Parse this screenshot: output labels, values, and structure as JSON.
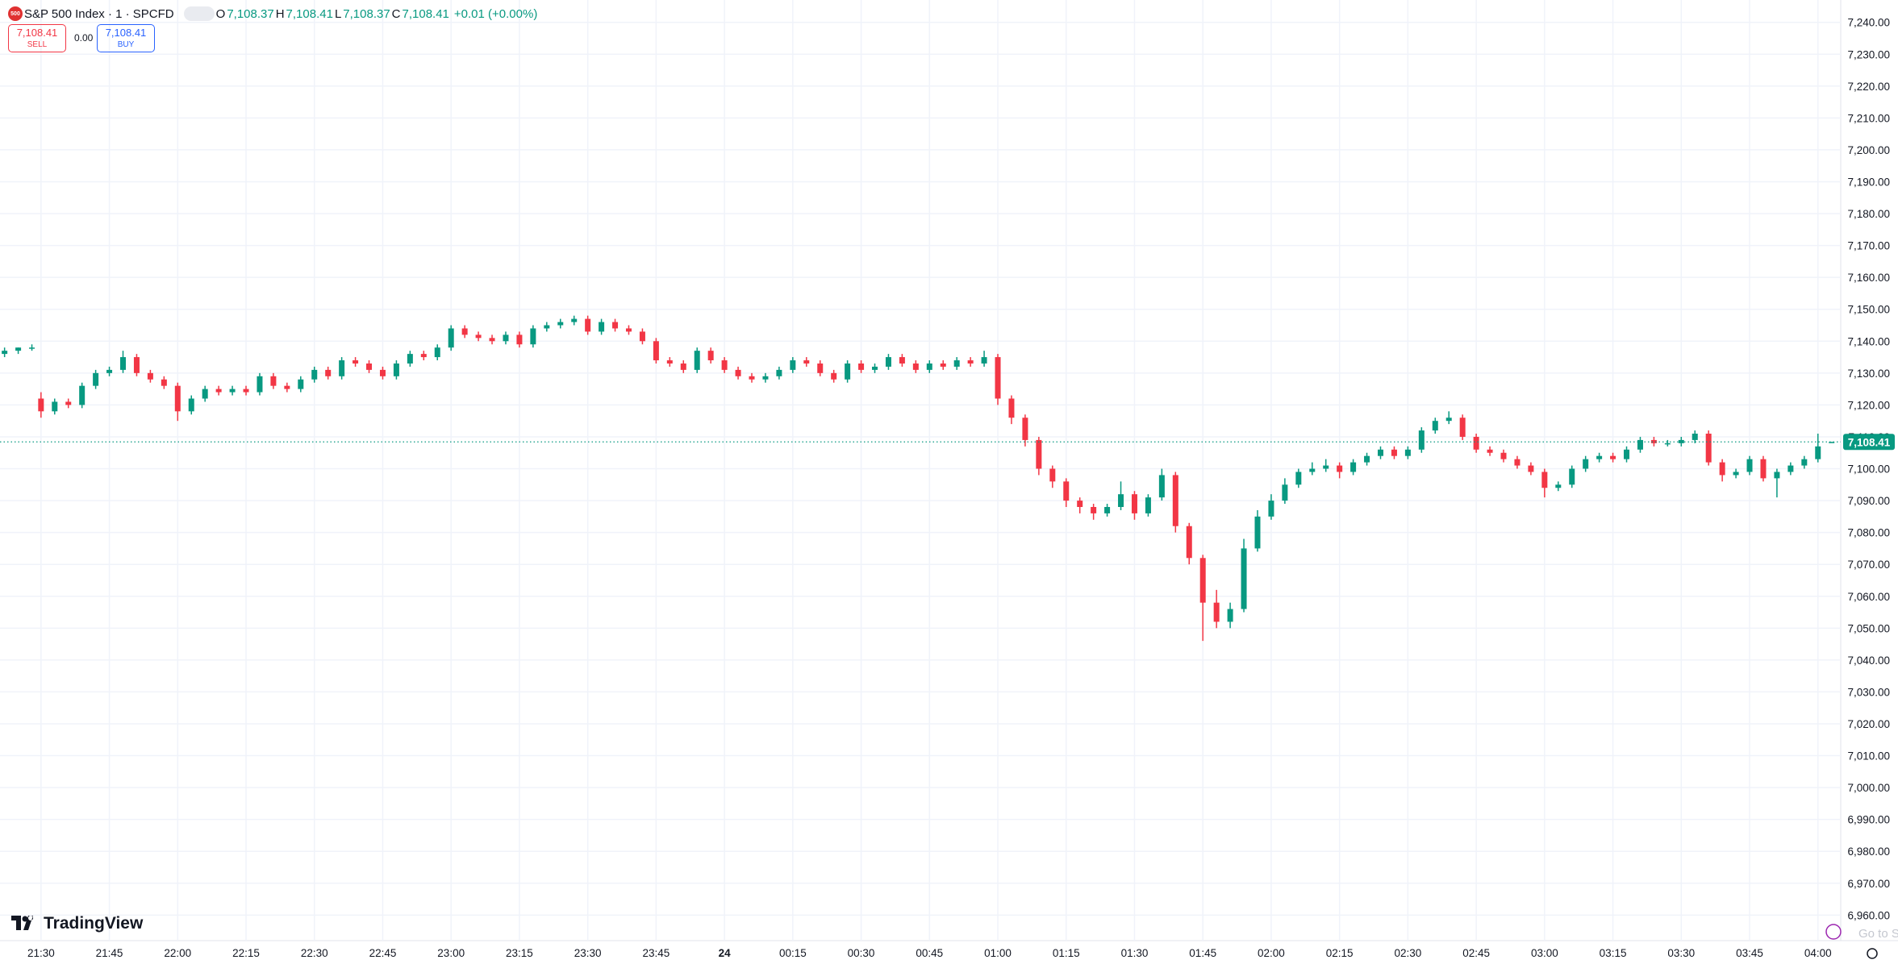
{
  "header": {
    "logo": "500",
    "symbol": "S&P 500 Index · 1 · SPCFD",
    "o_label": "O",
    "o_value": "7,108.37",
    "h_label": "H",
    "h_value": "7,108.41",
    "l_label": "L",
    "l_value": "7,108.37",
    "c_label": "C",
    "c_value": "7,108.41",
    "change": "+0.01 (+0.00%)",
    "sell_price": "7,108.41",
    "sell": "SELL",
    "spread": "0.00",
    "buy_price": "7,108.41",
    "buy": "BUY"
  },
  "footer": {
    "brand": "TradingView",
    "goto": "Go to S"
  },
  "chart_data": {
    "type": "candlestick",
    "up_color": "#089981",
    "down_color": "#f23645",
    "grid": true,
    "xlim": [
      "21:21",
      "04:05"
    ],
    "ylim": [
      6952,
      7247
    ],
    "last_price": {
      "value": 7108.41,
      "label": "7,108.41"
    },
    "xticks": [
      "21:30",
      "21:45",
      "22:00",
      "22:15",
      "22:30",
      "22:45",
      "23:00",
      "23:15",
      "23:30",
      "23:45",
      {
        "value": "00:00",
        "label": "24"
      },
      "00:15",
      "00:30",
      "00:45",
      "01:00",
      "01:15",
      "01:30",
      "01:45",
      "02:00",
      "02:15",
      "02:30",
      "02:45",
      "03:00",
      "03:15",
      "03:30",
      "03:45",
      "04:00"
    ],
    "yticks": [
      {
        "value": 6960,
        "label": "6,960.00"
      },
      {
        "value": 6970,
        "label": "6,970.00"
      },
      {
        "value": 6980,
        "label": "6,980.00"
      },
      {
        "value": 6990,
        "label": "6,990.00"
      },
      {
        "value": 7000,
        "label": "7,000.00"
      },
      {
        "value": 7010,
        "label": "7,010.00"
      },
      {
        "value": 7020,
        "label": "7,020.00"
      },
      {
        "value": 7030,
        "label": "7,030.00"
      },
      {
        "value": 7040,
        "label": "7,040.00"
      },
      {
        "value": 7050,
        "label": "7,050.00"
      },
      {
        "value": 7060,
        "label": "7,060.00"
      },
      {
        "value": 7070,
        "label": "7,070.00"
      },
      {
        "value": 7080,
        "label": "7,080.00"
      },
      {
        "value": 7090,
        "label": "7,090.00"
      },
      {
        "value": 7100,
        "label": "7,100.00"
      },
      {
        "value": 7110,
        "label": "7,110.00"
      },
      {
        "value": 7120,
        "label": "7,120.00"
      },
      {
        "value": 7130,
        "label": "7,130.00"
      },
      {
        "value": 7140,
        "label": "7,140.00"
      },
      {
        "value": 7150,
        "label": "7,150.00"
      },
      {
        "value": 7160,
        "label": "7,160.00"
      },
      {
        "value": 7170,
        "label": "7,170.00"
      },
      {
        "value": 7180,
        "label": "7,180.00"
      },
      {
        "value": 7190,
        "label": "7,190.00"
      },
      {
        "value": 7200,
        "label": "7,200.00"
      },
      {
        "value": 7210,
        "label": "7,210.00"
      },
      {
        "value": 7220,
        "label": "7,220.00"
      },
      {
        "value": 7230,
        "label": "7,230.00"
      },
      {
        "value": 7240,
        "label": "7,240.00"
      }
    ],
    "x": [
      "21:22",
      "21:25",
      "21:28",
      "21:30",
      "21:33",
      "21:36",
      "21:39",
      "21:42",
      "21:45",
      "21:48",
      "21:51",
      "21:54",
      "21:57",
      "22:00",
      "22:03",
      "22:06",
      "22:09",
      "22:12",
      "22:15",
      "22:18",
      "22:21",
      "22:24",
      "22:27",
      "22:30",
      "22:33",
      "22:36",
      "22:39",
      "22:42",
      "22:45",
      "22:48",
      "22:51",
      "22:54",
      "22:57",
      "23:00",
      "23:03",
      "23:06",
      "23:09",
      "23:12",
      "23:15",
      "23:18",
      "23:21",
      "23:24",
      "23:27",
      "23:30",
      "23:33",
      "23:36",
      "23:39",
      "23:42",
      "23:45",
      "23:48",
      "23:51",
      "23:54",
      "23:57",
      "00:00",
      "00:03",
      "00:06",
      "00:09",
      "00:12",
      "00:15",
      "00:18",
      "00:21",
      "00:24",
      "00:27",
      "00:30",
      "00:33",
      "00:36",
      "00:39",
      "00:42",
      "00:45",
      "00:48",
      "00:51",
      "00:54",
      "00:57",
      "01:00",
      "01:03",
      "01:06",
      "01:09",
      "01:12",
      "01:15",
      "01:18",
      "01:21",
      "01:24",
      "01:27",
      "01:30",
      "01:33",
      "01:36",
      "01:39",
      "01:42",
      "01:45",
      "01:48",
      "01:51",
      "01:54",
      "01:57",
      "02:00",
      "02:03",
      "02:06",
      "02:09",
      "02:12",
      "02:15",
      "02:18",
      "02:21",
      "02:24",
      "02:27",
      "02:30",
      "02:33",
      "02:36",
      "02:39",
      "02:42",
      "02:45",
      "02:48",
      "02:51",
      "02:54",
      "02:57",
      "03:00",
      "03:03",
      "03:06",
      "03:09",
      "03:12",
      "03:15",
      "03:18",
      "03:21",
      "03:24",
      "03:27",
      "03:30",
      "03:33",
      "03:36",
      "03:39",
      "03:42",
      "03:45",
      "03:48",
      "03:51",
      "03:54",
      "03:57",
      "04:00",
      "04:03"
    ],
    "candles": [
      [
        7136,
        7138,
        7135,
        7137
      ],
      [
        7137,
        7138,
        7136,
        7138
      ],
      [
        7138,
        7139,
        7137,
        7138
      ],
      [
        7122,
        7124,
        7116,
        7118
      ],
      [
        7118,
        7122,
        7117,
        7121
      ],
      [
        7121,
        7122,
        7119,
        7120
      ],
      [
        7120,
        7127,
        7119,
        7126
      ],
      [
        7126,
        7131,
        7125,
        7130
      ],
      [
        7130,
        7132,
        7129,
        7131
      ],
      [
        7131,
        7137,
        7130,
        7135
      ],
      [
        7135,
        7136,
        7129,
        7130
      ],
      [
        7130,
        7131,
        7127,
        7128
      ],
      [
        7128,
        7129,
        7125,
        7126
      ],
      [
        7126,
        7127,
        7115,
        7118
      ],
      [
        7118,
        7123,
        7117,
        7122
      ],
      [
        7122,
        7126,
        7121,
        7125
      ],
      [
        7125,
        7126,
        7123,
        7124
      ],
      [
        7124,
        7126,
        7123,
        7125
      ],
      [
        7125,
        7126,
        7123,
        7124
      ],
      [
        7124,
        7130,
        7123,
        7129
      ],
      [
        7129,
        7130,
        7125,
        7126
      ],
      [
        7126,
        7127,
        7124,
        7125
      ],
      [
        7125,
        7129,
        7124,
        7128
      ],
      [
        7128,
        7132,
        7127,
        7131
      ],
      [
        7131,
        7132,
        7128,
        7129
      ],
      [
        7129,
        7135,
        7128,
        7134
      ],
      [
        7134,
        7135,
        7132,
        7133
      ],
      [
        7133,
        7134,
        7130,
        7131
      ],
      [
        7131,
        7132,
        7128,
        7129
      ],
      [
        7129,
        7134,
        7128,
        7133
      ],
      [
        7133,
        7137,
        7132,
        7136
      ],
      [
        7136,
        7137,
        7134,
        7135
      ],
      [
        7135,
        7139,
        7134,
        7138
      ],
      [
        7138,
        7145,
        7137,
        7144
      ],
      [
        7144,
        7145,
        7141,
        7142
      ],
      [
        7142,
        7143,
        7140,
        7141
      ],
      [
        7141,
        7142,
        7139,
        7140
      ],
      [
        7140,
        7143,
        7139,
        7142
      ],
      [
        7142,
        7143,
        7138,
        7139
      ],
      [
        7139,
        7145,
        7138,
        7144
      ],
      [
        7144,
        7146,
        7143,
        7145
      ],
      [
        7145,
        7147,
        7144,
        7146
      ],
      [
        7146,
        7148,
        7145,
        7147
      ],
      [
        7147,
        7148,
        7142,
        7143
      ],
      [
        7143,
        7147,
        7142,
        7146
      ],
      [
        7146,
        7147,
        7143,
        7144
      ],
      [
        7144,
        7145,
        7142,
        7143
      ],
      [
        7143,
        7144,
        7139,
        7140
      ],
      [
        7140,
        7141,
        7133,
        7134
      ],
      [
        7134,
        7135,
        7132,
        7133
      ],
      [
        7133,
        7134,
        7130,
        7131
      ],
      [
        7131,
        7138,
        7130,
        7137
      ],
      [
        7137,
        7138,
        7133,
        7134
      ],
      [
        7134,
        7135,
        7130,
        7131
      ],
      [
        7131,
        7132,
        7128,
        7129
      ],
      [
        7129,
        7130,
        7127,
        7128
      ],
      [
        7128,
        7130,
        7127,
        7129
      ],
      [
        7129,
        7132,
        7128,
        7131
      ],
      [
        7131,
        7135,
        7130,
        7134
      ],
      [
        7134,
        7135,
        7132,
        7133
      ],
      [
        7133,
        7134,
        7129,
        7130
      ],
      [
        7130,
        7131,
        7127,
        7128
      ],
      [
        7128,
        7134,
        7127,
        7133
      ],
      [
        7133,
        7134,
        7130,
        7131
      ],
      [
        7131,
        7133,
        7130,
        7132
      ],
      [
        7132,
        7136,
        7131,
        7135
      ],
      [
        7135,
        7136,
        7132,
        7133
      ],
      [
        7133,
        7134,
        7130,
        7131
      ],
      [
        7131,
        7134,
        7130,
        7133
      ],
      [
        7133,
        7134,
        7131,
        7132
      ],
      [
        7132,
        7135,
        7131,
        7134
      ],
      [
        7134,
        7135,
        7132,
        7133
      ],
      [
        7133,
        7137,
        7132,
        7135
      ],
      [
        7135,
        7136,
        7120,
        7122
      ],
      [
        7122,
        7123,
        7114,
        7116
      ],
      [
        7116,
        7117,
        7107,
        7109
      ],
      [
        7109,
        7110,
        7098,
        7100
      ],
      [
        7100,
        7101,
        7094,
        7096
      ],
      [
        7096,
        7097,
        7088,
        7090
      ],
      [
        7090,
        7091,
        7086,
        7088
      ],
      [
        7088,
        7089,
        7084,
        7086
      ],
      [
        7086,
        7089,
        7085,
        7088
      ],
      [
        7088,
        7096,
        7087,
        7092
      ],
      [
        7092,
        7093,
        7084,
        7086
      ],
      [
        7086,
        7092,
        7085,
        7091
      ],
      [
        7091,
        7100,
        7090,
        7098
      ],
      [
        7098,
        7099,
        7080,
        7082
      ],
      [
        7082,
        7083,
        7070,
        7072
      ],
      [
        7072,
        7073,
        7046,
        7058
      ],
      [
        7058,
        7062,
        7050,
        7052
      ],
      [
        7052,
        7058,
        7050,
        7056
      ],
      [
        7056,
        7078,
        7055,
        7075
      ],
      [
        7075,
        7087,
        7074,
        7085
      ],
      [
        7085,
        7092,
        7084,
        7090
      ],
      [
        7090,
        7097,
        7089,
        7095
      ],
      [
        7095,
        7100,
        7094,
        7099
      ],
      [
        7099,
        7102,
        7098,
        7100
      ],
      [
        7100,
        7103,
        7099,
        7101
      ],
      [
        7101,
        7102,
        7097,
        7099
      ],
      [
        7099,
        7103,
        7098,
        7102
      ],
      [
        7102,
        7105,
        7101,
        7104
      ],
      [
        7104,
        7107,
        7103,
        7106
      ],
      [
        7106,
        7107,
        7103,
        7104
      ],
      [
        7104,
        7107,
        7103,
        7106
      ],
      [
        7106,
        7113,
        7105,
        7112
      ],
      [
        7112,
        7116,
        7111,
        7115
      ],
      [
        7115,
        7118,
        7114,
        7116
      ],
      [
        7116,
        7117,
        7109,
        7110
      ],
      [
        7110,
        7111,
        7105,
        7106
      ],
      [
        7106,
        7107,
        7104,
        7105
      ],
      [
        7105,
        7106,
        7102,
        7103
      ],
      [
        7103,
        7104,
        7100,
        7101
      ],
      [
        7101,
        7102,
        7098,
        7099
      ],
      [
        7099,
        7100,
        7091,
        7094
      ],
      [
        7094,
        7096,
        7093,
        7095
      ],
      [
        7095,
        7101,
        7094,
        7100
      ],
      [
        7100,
        7104,
        7099,
        7103
      ],
      [
        7103,
        7105,
        7102,
        7104
      ],
      [
        7104,
        7105,
        7102,
        7103
      ],
      [
        7103,
        7107,
        7102,
        7106
      ],
      [
        7106,
        7110,
        7105,
        7109
      ],
      [
        7109,
        7110,
        7107,
        7108
      ],
      [
        7108,
        7109,
        7107,
        7108
      ],
      [
        7108,
        7110,
        7107,
        7109
      ],
      [
        7109,
        7112,
        7108,
        7111
      ],
      [
        7111,
        7112,
        7101,
        7102
      ],
      [
        7102,
        7103,
        7096,
        7098
      ],
      [
        7098,
        7100,
        7097,
        7099
      ],
      [
        7099,
        7104,
        7098,
        7103
      ],
      [
        7103,
        7104,
        7096,
        7097
      ],
      [
        7097,
        7100,
        7091,
        7099
      ],
      [
        7099,
        7102,
        7098,
        7101
      ],
      [
        7101,
        7104,
        7100,
        7103
      ],
      [
        7103,
        7111,
        7102,
        7107
      ],
      [
        7108.37,
        7108.41,
        7108.37,
        7108.41
      ]
    ]
  }
}
